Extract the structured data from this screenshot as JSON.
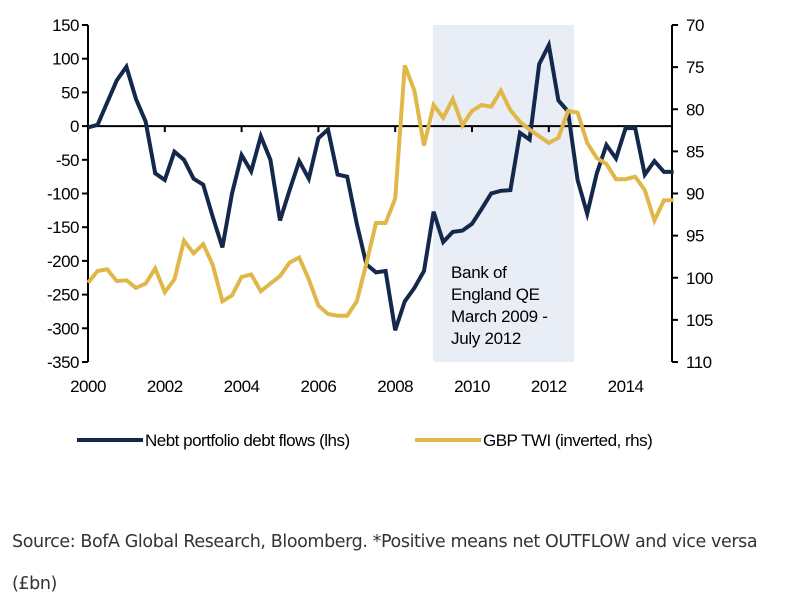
{
  "chart_data": {
    "type": "line",
    "title": "",
    "xlabel": "",
    "ylabel_left": "",
    "ylabel_right": "",
    "x_ticks": [
      "2000",
      "2002",
      "2004",
      "2006",
      "2008",
      "2010",
      "2012",
      "2014"
    ],
    "x_range": [
      2000,
      2015.25
    ],
    "y_left": {
      "range": [
        -350,
        150
      ],
      "ticks": [
        "150",
        "100",
        "50",
        "0",
        "-50",
        "-100",
        "-150",
        "-200",
        "-250",
        "-300",
        "-350"
      ]
    },
    "y_right": {
      "range": [
        70,
        110
      ],
      "inverted": true,
      "ticks": [
        "70",
        "75",
        "80",
        "85",
        "90",
        "95",
        "100",
        "105",
        "110"
      ]
    },
    "x": [
      2000.0,
      2000.25,
      2000.5,
      2000.75,
      2001.0,
      2001.25,
      2001.5,
      2001.75,
      2002.0,
      2002.25,
      2002.5,
      2002.75,
      2003.0,
      2003.25,
      2003.5,
      2003.75,
      2004.0,
      2004.25,
      2004.5,
      2004.75,
      2005.0,
      2005.25,
      2005.5,
      2005.75,
      2006.0,
      2006.25,
      2006.5,
      2006.75,
      2007.0,
      2007.25,
      2007.5,
      2007.75,
      2008.0,
      2008.25,
      2008.5,
      2008.75,
      2009.0,
      2009.25,
      2009.5,
      2009.75,
      2010.0,
      2010.25,
      2010.5,
      2010.75,
      2011.0,
      2011.25,
      2011.5,
      2011.75,
      2012.0,
      2012.25,
      2012.5,
      2012.75,
      2013.0,
      2013.25,
      2013.5,
      2013.75,
      2014.0,
      2014.25,
      2014.5,
      2014.75,
      2015.0,
      2015.25
    ],
    "series": [
      {
        "name": "Nebt portfolio debt flows (lhs)",
        "axis": "left",
        "color": "#14284b",
        "values": [
          -2,
          2,
          35,
          68,
          88,
          40,
          7,
          -70,
          -80,
          -38,
          -50,
          -78,
          -87,
          -135,
          -180,
          -100,
          -43,
          -67,
          -15,
          -50,
          -140,
          -95,
          -52,
          -78,
          -18,
          -5,
          -72,
          -75,
          -145,
          -205,
          -217,
          -215,
          -303,
          -260,
          -240,
          -215,
          -127,
          -172,
          -157,
          -155,
          -145,
          -123,
          -100,
          -96,
          -95,
          -10,
          -20,
          92,
          120,
          38,
          22,
          -80,
          -130,
          -70,
          -28,
          -48,
          -3,
          -3,
          -72,
          -52,
          -68,
          -68
        ]
      },
      {
        "name": "GBP TWI (inverted, rhs)",
        "axis": "right",
        "color": "#e0b84a",
        "values": [
          100.6,
          99.2,
          99.0,
          100.4,
          100.3,
          101.2,
          100.7,
          98.9,
          101.7,
          100.2,
          95.6,
          97.1,
          96.0,
          98.5,
          102.8,
          102.1,
          99.9,
          99.6,
          101.6,
          100.7,
          99.8,
          98.2,
          97.6,
          100.2,
          103.3,
          104.3,
          104.5,
          104.5,
          102.8,
          98.3,
          93.5,
          93.5,
          90.6,
          74.8,
          77.8,
          84.3,
          79.5,
          81.0,
          78.8,
          81.9,
          80.2,
          79.5,
          79.7,
          77.8,
          80.1,
          81.5,
          82.4,
          83.2,
          84.0,
          83.4,
          80.2,
          80.4,
          84.0,
          85.8,
          86.5,
          88.3,
          88.3,
          88.0,
          89.6,
          93.2,
          90.8,
          90.8
        ]
      }
    ],
    "shaded_region": {
      "from": 2009.0,
      "to": 2012.67,
      "color": "#e9eef6",
      "label": [
        "Bank of",
        "England QE",
        "March 2009 -",
        "July 2012"
      ]
    },
    "legend": {
      "placement": "bottom",
      "entries": [
        "Nebt portfolio debt flows (lhs)",
        "GBP TWI (inverted, rhs)"
      ]
    },
    "grid": false,
    "zero_line": true
  },
  "caption": {
    "text": "Source: BofA Global Research, Bloomberg. *Positive means net OUTFLOW and vice versa (£bn)"
  }
}
